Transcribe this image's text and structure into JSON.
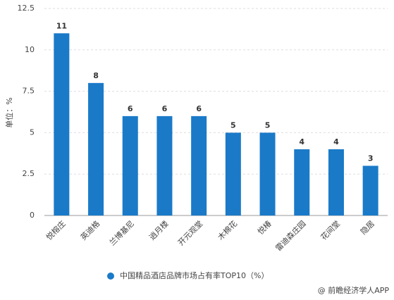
{
  "chart_data": {
    "type": "bar",
    "y_label": "单位：%",
    "categories": [
      "悦榕庄",
      "英迪格",
      "兰博基尼",
      "逍月楼",
      "开元观堂",
      "木棉花",
      "悦椿",
      "雷迪森庄园",
      "花间堂",
      "隐居"
    ],
    "series": [
      {
        "name": "中国精品酒店品牌市场占有率TOP10（%）",
        "color": "#1a7ac8",
        "values": [
          11,
          8,
          6,
          6,
          6,
          5,
          5,
          4,
          4,
          3
        ]
      }
    ],
    "ylim": [
      0,
      12.5
    ],
    "yticks": [
      0,
      2.5,
      5,
      7.5,
      10,
      12.5
    ],
    "grid": true,
    "source": "@ 前瞻经济学人APP"
  }
}
